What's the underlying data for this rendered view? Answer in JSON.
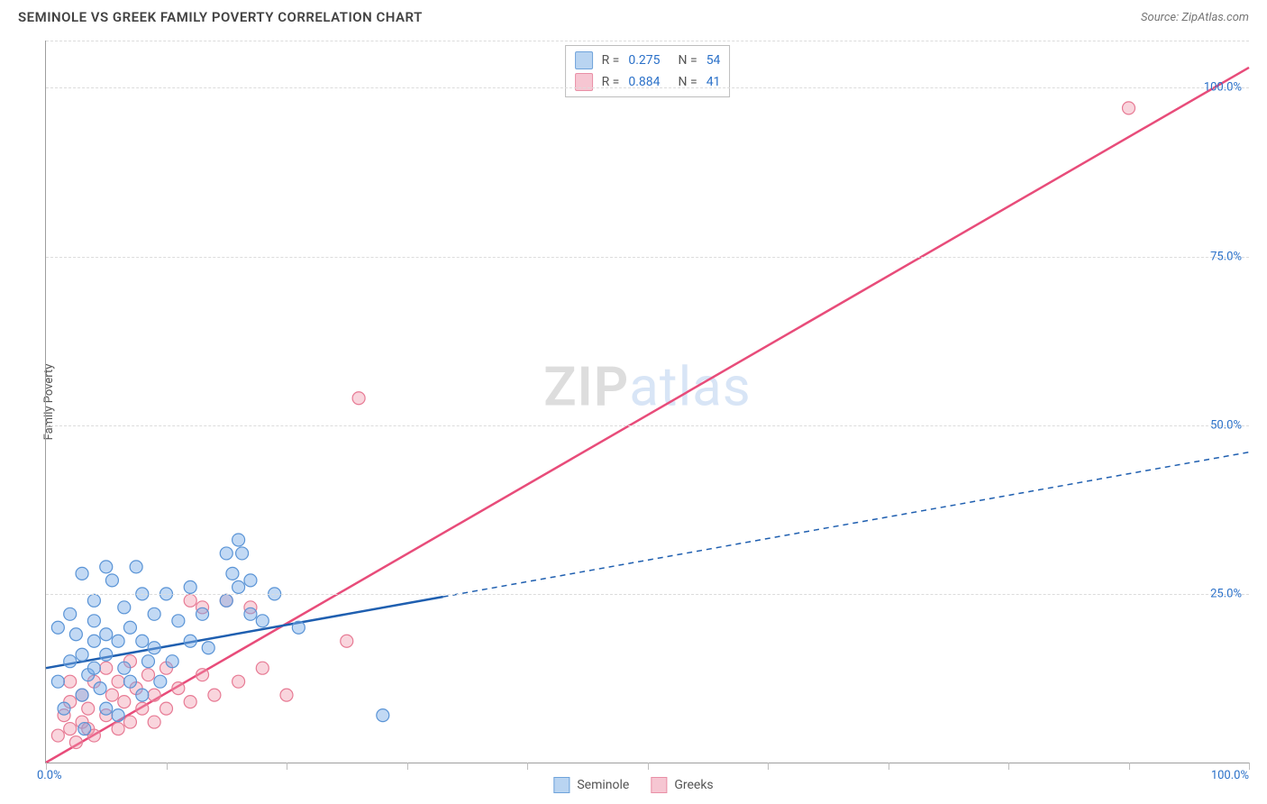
{
  "header": {
    "title": "SEMINOLE VS GREEK FAMILY POVERTY CORRELATION CHART",
    "source": "Source: ZipAtlas.com"
  },
  "ylabel": "Family Poverty",
  "watermark": {
    "prefix": "ZIP",
    "suffix": "atlas"
  },
  "chart": {
    "type": "scatter",
    "xlim": [
      0,
      100
    ],
    "ylim": [
      0,
      107
    ],
    "x_ticks": [
      0,
      10,
      20,
      30,
      40,
      50,
      60,
      70,
      80,
      90,
      100
    ],
    "y_gridlines": [
      25,
      50,
      75,
      100,
      107
    ],
    "y_labels": [
      {
        "v": 25,
        "t": "25.0%"
      },
      {
        "v": 50,
        "t": "50.0%"
      },
      {
        "v": 75,
        "t": "75.0%"
      },
      {
        "v": 100,
        "t": "100.0%"
      }
    ],
    "x_label_0": "0.0%",
    "x_label_100": "100.0%",
    "marker_radius": 7,
    "marker_stroke_width": 1.2,
    "line_width": 2.5,
    "colors": {
      "seminole_fill": "rgba(120,170,230,0.45)",
      "seminole_stroke": "#5a94d6",
      "seminole_line": "#1f5fb0",
      "greek_fill": "rgba(240,150,170,0.40)",
      "greek_stroke": "#e77a94",
      "greek_line": "#e84c7a",
      "swatch_seminole_fill": "#b9d4f1",
      "swatch_seminole_border": "#6fa3db",
      "swatch_greek_fill": "#f6c6d2",
      "swatch_greek_border": "#e98fa6",
      "grid": "#dcdcdc",
      "axis": "#9e9e9e",
      "value_text": "#2a70c8",
      "label_text": "#555555"
    },
    "series": {
      "seminole": {
        "r": "0.275",
        "n": "54",
        "trend": {
          "x1": 0,
          "y1": 14,
          "x2": 100,
          "y2": 46,
          "solid_until_x": 33
        },
        "points": [
          [
            1,
            12
          ],
          [
            1,
            20
          ],
          [
            1.5,
            8
          ],
          [
            2,
            22
          ],
          [
            2,
            15
          ],
          [
            2.5,
            19
          ],
          [
            3,
            28
          ],
          [
            3,
            16
          ],
          [
            3,
            10
          ],
          [
            3.5,
            13
          ],
          [
            3.2,
            5
          ],
          [
            4,
            24
          ],
          [
            4,
            18
          ],
          [
            4,
            14
          ],
          [
            4,
            21
          ],
          [
            4.5,
            11
          ],
          [
            5,
            19
          ],
          [
            5,
            16
          ],
          [
            5,
            29
          ],
          [
            5,
            8
          ],
          [
            5.5,
            27
          ],
          [
            6,
            7
          ],
          [
            6,
            18
          ],
          [
            6.5,
            14
          ],
          [
            6.5,
            23
          ],
          [
            7,
            20
          ],
          [
            7,
            12
          ],
          [
            7.5,
            29
          ],
          [
            8,
            18
          ],
          [
            8,
            10
          ],
          [
            8,
            25
          ],
          [
            8.5,
            15
          ],
          [
            9,
            17
          ],
          [
            9,
            22
          ],
          [
            9.5,
            12
          ],
          [
            10,
            25
          ],
          [
            10.5,
            15
          ],
          [
            11,
            21
          ],
          [
            12,
            18
          ],
          [
            12,
            26
          ],
          [
            13,
            22
          ],
          [
            13.5,
            17
          ],
          [
            15,
            24
          ],
          [
            15,
            31
          ],
          [
            15.5,
            28
          ],
          [
            16,
            33
          ],
          [
            16,
            26
          ],
          [
            16.3,
            31
          ],
          [
            17,
            22
          ],
          [
            17,
            27
          ],
          [
            18,
            21
          ],
          [
            19,
            25
          ],
          [
            21,
            20
          ],
          [
            28,
            7
          ]
        ]
      },
      "greek": {
        "r": "0.884",
        "n": "41",
        "trend": {
          "x1": 0,
          "y1": 0,
          "x2": 100,
          "y2": 103,
          "solid_until_x": 100
        },
        "points": [
          [
            1,
            4
          ],
          [
            1.5,
            7
          ],
          [
            2,
            5
          ],
          [
            2,
            9
          ],
          [
            2,
            12
          ],
          [
            2.5,
            3
          ],
          [
            3,
            6
          ],
          [
            3,
            10
          ],
          [
            3.5,
            8
          ],
          [
            3.5,
            5
          ],
          [
            4,
            4
          ],
          [
            4,
            12
          ],
          [
            5,
            7
          ],
          [
            5,
            14
          ],
          [
            5.5,
            10
          ],
          [
            6,
            5
          ],
          [
            6,
            12
          ],
          [
            6.5,
            9
          ],
          [
            7,
            6
          ],
          [
            7,
            15
          ],
          [
            7.5,
            11
          ],
          [
            8,
            8
          ],
          [
            8.5,
            13
          ],
          [
            9,
            10
          ],
          [
            9,
            6
          ],
          [
            10,
            8
          ],
          [
            10,
            14
          ],
          [
            11,
            11
          ],
          [
            12,
            9
          ],
          [
            12,
            24
          ],
          [
            13,
            13
          ],
          [
            13,
            23
          ],
          [
            14,
            10
          ],
          [
            15,
            24
          ],
          [
            16,
            12
          ],
          [
            17,
            23
          ],
          [
            18,
            14
          ],
          [
            20,
            10
          ],
          [
            25,
            18
          ],
          [
            26,
            54
          ],
          [
            90,
            97
          ]
        ]
      }
    },
    "legend_bottom": [
      {
        "label": "Seminole",
        "key": "seminole"
      },
      {
        "label": "Greeks",
        "key": "greek"
      }
    ],
    "legend_top": [
      {
        "key": "seminole"
      },
      {
        "key": "greek"
      }
    ]
  }
}
